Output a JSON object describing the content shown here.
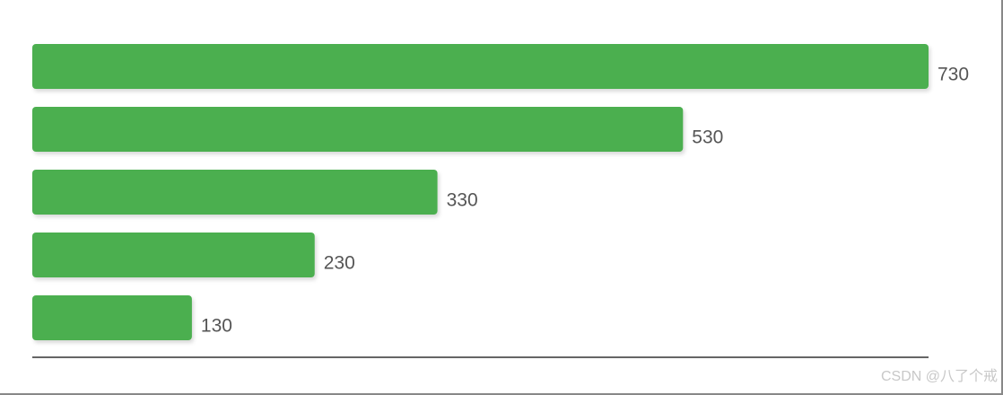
{
  "chart_data": {
    "type": "hbar",
    "categories": [
      null,
      null,
      null,
      null,
      null
    ],
    "values": [
      730,
      530,
      330,
      230,
      130
    ],
    "color": "#4caf50",
    "xlim": [
      0,
      730
    ],
    "watermark": "CSDN @八了个戒"
  }
}
